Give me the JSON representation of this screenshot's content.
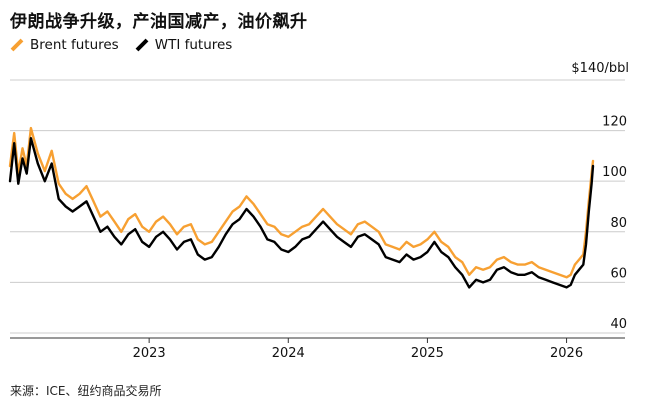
{
  "title": "伊朗战争升级，产油国减产，油价飙升",
  "source": "来源：ICE、纽约商品交易所",
  "colors": {
    "brent": "#f7a032",
    "wti": "#000000",
    "grid": "#cccccc",
    "axis": "#333333"
  },
  "chart_data": {
    "type": "line",
    "title": "伊朗战争升级，产油国减产，油价飙升",
    "unit_label": "$140/bbl",
    "ylim": [
      38,
      140
    ],
    "yticks": [
      40,
      60,
      80,
      100,
      120
    ],
    "x_range": [
      2022.0,
      2026.42
    ],
    "xticks": [
      {
        "label": "2023",
        "x": 2023.0
      },
      {
        "label": "2024",
        "x": 2024.0
      },
      {
        "label": "2025",
        "x": 2025.0
      },
      {
        "label": "2026",
        "x": 2026.0
      }
    ],
    "series": [
      {
        "name": "Brent futures",
        "x": [
          2022.0,
          2022.03,
          2022.06,
          2022.09,
          2022.12,
          2022.15,
          2022.2,
          2022.25,
          2022.3,
          2022.35,
          2022.4,
          2022.45,
          2022.5,
          2022.55,
          2022.6,
          2022.65,
          2022.7,
          2022.75,
          2022.8,
          2022.85,
          2022.9,
          2022.95,
          2023.0,
          2023.05,
          2023.1,
          2023.15,
          2023.2,
          2023.25,
          2023.3,
          2023.35,
          2023.4,
          2023.45,
          2023.5,
          2023.55,
          2023.6,
          2023.65,
          2023.7,
          2023.75,
          2023.8,
          2023.85,
          2023.9,
          2023.95,
          2024.0,
          2024.05,
          2024.1,
          2024.15,
          2024.2,
          2024.25,
          2024.3,
          2024.35,
          2024.4,
          2024.45,
          2024.5,
          2024.55,
          2024.6,
          2024.65,
          2024.7,
          2024.75,
          2024.8,
          2024.85,
          2024.9,
          2024.95,
          2025.0,
          2025.05,
          2025.1,
          2025.15,
          2025.2,
          2025.25,
          2025.3,
          2025.35,
          2025.4,
          2025.45,
          2025.5,
          2025.55,
          2025.6,
          2025.65,
          2025.7,
          2025.75,
          2025.8,
          2025.85,
          2025.9,
          2025.95,
          2026.0,
          2026.03,
          2026.06,
          2026.09,
          2026.12,
          2026.14,
          2026.16,
          2026.18,
          2026.19
        ],
        "values": [
          106,
          119,
          103,
          113,
          106,
          121,
          111,
          104,
          112,
          99,
          95,
          93,
          95,
          98,
          92,
          86,
          88,
          84,
          80,
          85,
          87,
          82,
          80,
          84,
          86,
          83,
          79,
          82,
          83,
          77,
          75,
          76,
          80,
          84,
          88,
          90,
          94,
          91,
          87,
          83,
          82,
          79,
          78,
          80,
          82,
          83,
          86,
          89,
          86,
          83,
          81,
          79,
          83,
          84,
          82,
          80,
          75,
          74,
          73,
          76,
          74,
          75,
          77,
          80,
          76,
          74,
          70,
          68,
          63,
          66,
          65,
          66,
          69,
          70,
          68,
          67,
          67,
          68,
          66,
          65,
          64,
          63,
          62,
          63,
          67,
          69,
          71,
          80,
          92,
          103,
          108
        ]
      },
      {
        "name": "WTI futures",
        "x": [
          2022.0,
          2022.03,
          2022.06,
          2022.09,
          2022.12,
          2022.15,
          2022.2,
          2022.25,
          2022.3,
          2022.35,
          2022.4,
          2022.45,
          2022.5,
          2022.55,
          2022.6,
          2022.65,
          2022.7,
          2022.75,
          2022.8,
          2022.85,
          2022.9,
          2022.95,
          2023.0,
          2023.05,
          2023.1,
          2023.15,
          2023.2,
          2023.25,
          2023.3,
          2023.35,
          2023.4,
          2023.45,
          2023.5,
          2023.55,
          2023.6,
          2023.65,
          2023.7,
          2023.75,
          2023.8,
          2023.85,
          2023.9,
          2023.95,
          2024.0,
          2024.05,
          2024.1,
          2024.15,
          2024.2,
          2024.25,
          2024.3,
          2024.35,
          2024.4,
          2024.45,
          2024.5,
          2024.55,
          2024.6,
          2024.65,
          2024.7,
          2024.75,
          2024.8,
          2024.85,
          2024.9,
          2024.95,
          2025.0,
          2025.05,
          2025.1,
          2025.15,
          2025.2,
          2025.25,
          2025.3,
          2025.35,
          2025.4,
          2025.45,
          2025.5,
          2025.55,
          2025.6,
          2025.65,
          2025.7,
          2025.75,
          2025.8,
          2025.85,
          2025.9,
          2025.95,
          2026.0,
          2026.03,
          2026.06,
          2026.09,
          2026.12,
          2026.14,
          2026.16,
          2026.18,
          2026.19
        ],
        "values": [
          100,
          115,
          99,
          109,
          103,
          117,
          107,
          100,
          107,
          93,
          90,
          88,
          90,
          92,
          86,
          80,
          82,
          78,
          75,
          79,
          81,
          76,
          74,
          78,
          80,
          77,
          73,
          76,
          77,
          71,
          69,
          70,
          74,
          79,
          83,
          85,
          89,
          86,
          82,
          77,
          76,
          73,
          72,
          74,
          77,
          78,
          81,
          84,
          81,
          78,
          76,
          74,
          78,
          79,
          77,
          75,
          70,
          69,
          68,
          71,
          69,
          70,
          72,
          76,
          72,
          70,
          66,
          63,
          58,
          61,
          60,
          61,
          65,
          66,
          64,
          63,
          63,
          64,
          62,
          61,
          60,
          59,
          58,
          59,
          63,
          65,
          67,
          75,
          88,
          99,
          106
        ]
      }
    ]
  }
}
